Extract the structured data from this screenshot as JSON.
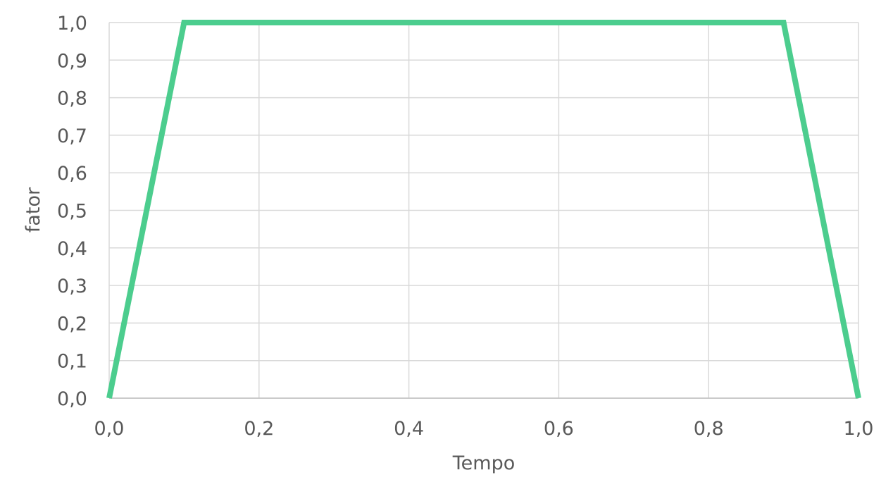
{
  "chart_data": {
    "type": "line",
    "title": "",
    "xlabel": "Tempo",
    "ylabel": "fator",
    "xlim": [
      0,
      1
    ],
    "ylim": [
      0,
      1
    ],
    "grid": true,
    "legend": "none",
    "x_ticks": [
      "0,0",
      "0,2",
      "0,4",
      "0,6",
      "0,8",
      "1,0"
    ],
    "y_ticks": [
      "0,0",
      "0,1",
      "0,2",
      "0,3",
      "0,4",
      "0,5",
      "0,6",
      "0,7",
      "0,8",
      "0,9",
      "1,0"
    ],
    "series": [
      {
        "color": "#4ccd8e",
        "x": [
          0.0,
          0.1,
          0.9,
          1.0
        ],
        "y": [
          0.0,
          1.0,
          1.0,
          0.0
        ]
      }
    ]
  }
}
